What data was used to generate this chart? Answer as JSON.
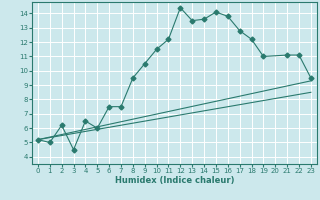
{
  "title": "",
  "xlabel": "Humidex (Indice chaleur)",
  "bg_color": "#cce8ec",
  "line_color": "#2a7a6e",
  "grid_color": "#ffffff",
  "xlim": [
    -0.5,
    23.5
  ],
  "ylim": [
    3.5,
    14.8
  ],
  "xticks": [
    0,
    1,
    2,
    3,
    4,
    5,
    6,
    7,
    8,
    9,
    10,
    11,
    12,
    13,
    14,
    15,
    16,
    17,
    18,
    19,
    20,
    21,
    22,
    23
  ],
  "yticks": [
    4,
    5,
    6,
    7,
    8,
    9,
    10,
    11,
    12,
    13,
    14
  ],
  "curve1_x": [
    0,
    1,
    2,
    3,
    4,
    5,
    6,
    7,
    8,
    9,
    10,
    11,
    12,
    13,
    14,
    15,
    16,
    17,
    18,
    19,
    21,
    22,
    23
  ],
  "curve1_y": [
    5.2,
    5.0,
    6.2,
    4.5,
    6.5,
    6.0,
    7.5,
    7.5,
    9.5,
    10.5,
    11.5,
    12.2,
    14.4,
    13.5,
    13.6,
    14.1,
    13.8,
    12.8,
    12.2,
    11.0,
    11.1,
    11.1,
    9.5
  ],
  "curve2_x": [
    0,
    23
  ],
  "curve2_y": [
    5.2,
    8.5
  ],
  "curve3_x": [
    0,
    23
  ],
  "curve3_y": [
    5.2,
    9.3
  ],
  "figsize": [
    3.2,
    2.0
  ],
  "dpi": 100
}
